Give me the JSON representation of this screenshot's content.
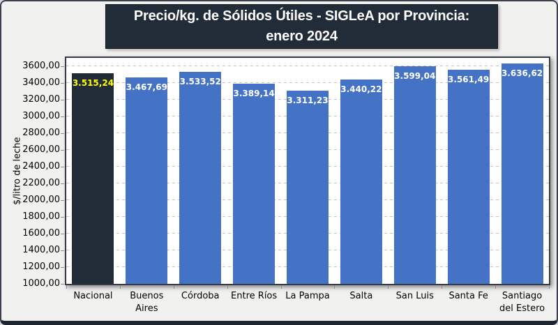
{
  "title": {
    "line1": "Precio/kg. de Sólidos Útiles - SIGLeA por Provincia:",
    "line2": "enero 2024"
  },
  "chart_data": {
    "type": "bar",
    "title": "Precio/kg. de Sólidos Útiles - SIGLeA por Provincia: enero 2024",
    "categories": [
      "Nacional",
      "Buenos Aires",
      "Córdoba",
      "Entre Ríos",
      "La Pampa",
      "Salta",
      "San Luis",
      "Santa Fe",
      "Santiago del Estero"
    ],
    "values": [
      3515.24,
      3467.69,
      3533.52,
      3389.14,
      3311.23,
      3440.22,
      3599.04,
      3561.49,
      3636.62
    ],
    "value_labels": [
      "3.515,24",
      "3.467,69",
      "3.533,52",
      "3.389,14",
      "3.311,23",
      "3.440,22",
      "3.599,04",
      "3.561,49",
      "3.636,62"
    ],
    "xlabel": "",
    "ylabel": "$/litro de leche",
    "ylim": [
      1000,
      3700
    ],
    "yticks": [
      1000,
      1200,
      1400,
      1600,
      1800,
      2000,
      2200,
      2400,
      2600,
      2800,
      3000,
      3200,
      3400,
      3600
    ],
    "ytick_labels": [
      "1000,00",
      "1200,00",
      "1400,00",
      "1600,00",
      "1800,00",
      "2000,00",
      "2200,00",
      "2400,00",
      "2600,00",
      "2800,00",
      "3000,00",
      "3200,00",
      "3400,00",
      "3600,00"
    ],
    "grid": "horizontal-dashed",
    "legend": "none",
    "highlight_index": 0,
    "colors": {
      "bar": "#4472C4",
      "highlight_bar": "#222B38",
      "value_label": "#FFFFFF",
      "highlight_value_label": "#FFFF00",
      "title_bg": "#222B38",
      "title_text": "#FFFFFF",
      "gridline": "#BFBFBF"
    }
  }
}
